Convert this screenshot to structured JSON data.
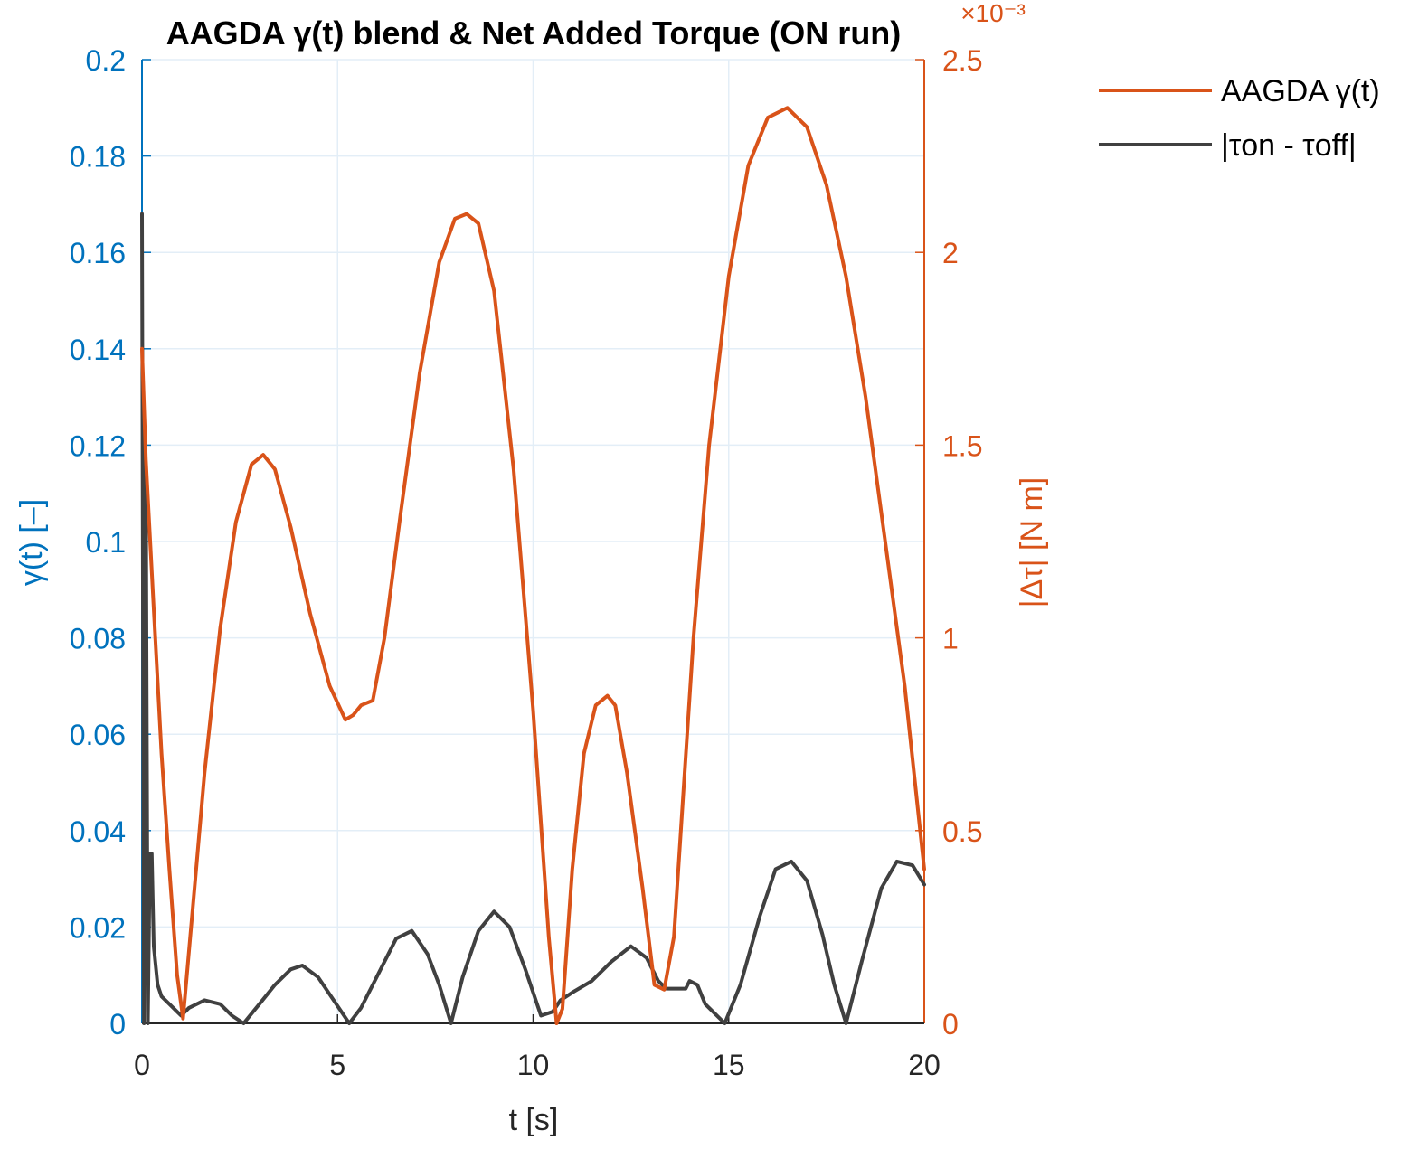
{
  "chart_data": {
    "type": "line",
    "title": "AAGDA γ(t) blend & Net Added Torque (ON run)",
    "xlabel": "t [s]",
    "ylabel_left": "γ(t) [–]",
    "ylabel_right": "|Δτ| [N m]",
    "right_exponent": "×10⁻³",
    "xlim": [
      0,
      20
    ],
    "ylim_left": [
      0,
      0.2
    ],
    "ylim_right": [
      0,
      2.5
    ],
    "xticks": [
      "0",
      "5",
      "10",
      "15",
      "20"
    ],
    "yticks_left": [
      "0",
      "0.02",
      "0.04",
      "0.06",
      "0.08",
      "0.1",
      "0.12",
      "0.14",
      "0.16",
      "0.18",
      "0.2"
    ],
    "yticks_right": [
      "0",
      "0.5",
      "1",
      "1.5",
      "2",
      "2.5"
    ],
    "grid": true,
    "legend_position": "outside-top-right",
    "series": [
      {
        "name": "AAGDA γ(t)",
        "axis": "left",
        "color": "#d95319",
        "x": [
          0.0,
          0.1,
          0.3,
          0.5,
          0.7,
          0.9,
          1.05,
          1.3,
          1.6,
          2.0,
          2.4,
          2.8,
          3.1,
          3.4,
          3.8,
          4.3,
          4.8,
          5.2,
          5.4,
          5.6,
          5.9,
          6.2,
          6.6,
          7.1,
          7.6,
          8.0,
          8.3,
          8.6,
          9.0,
          9.5,
          10.0,
          10.4,
          10.6,
          10.75,
          11.0,
          11.3,
          11.6,
          11.9,
          12.1,
          12.4,
          12.8,
          13.1,
          13.35,
          13.6,
          13.8,
          14.1,
          14.5,
          15.0,
          15.5,
          16.0,
          16.5,
          17.0,
          17.5,
          18.0,
          18.5,
          19.0,
          19.5,
          20.0
        ],
        "y": [
          0.14,
          0.117,
          0.086,
          0.056,
          0.032,
          0.01,
          0.001,
          0.024,
          0.052,
          0.082,
          0.104,
          0.116,
          0.118,
          0.115,
          0.103,
          0.085,
          0.07,
          0.063,
          0.064,
          0.066,
          0.067,
          0.08,
          0.105,
          0.135,
          0.158,
          0.167,
          0.168,
          0.166,
          0.152,
          0.115,
          0.065,
          0.018,
          0.0,
          0.003,
          0.032,
          0.056,
          0.066,
          0.068,
          0.066,
          0.052,
          0.028,
          0.008,
          0.007,
          0.018,
          0.043,
          0.08,
          0.12,
          0.155,
          0.178,
          0.188,
          0.19,
          0.186,
          0.174,
          0.155,
          0.13,
          0.1,
          0.07,
          0.032
        ]
      },
      {
        "name": "|τon - τoff|",
        "axis": "right",
        "color": "#404040",
        "x": [
          0.0,
          0.05,
          0.1,
          0.15,
          0.2,
          0.25,
          0.3,
          0.4,
          0.5,
          0.7,
          0.9,
          1.0,
          1.2,
          1.6,
          2.0,
          2.3,
          2.6,
          3.0,
          3.4,
          3.8,
          4.1,
          4.5,
          4.9,
          5.3,
          5.6,
          6.0,
          6.5,
          6.9,
          7.3,
          7.6,
          7.9,
          8.2,
          8.6,
          9.0,
          9.4,
          9.8,
          10.2,
          10.5,
          10.7,
          11.0,
          11.5,
          12.0,
          12.5,
          12.9,
          13.2,
          13.4,
          13.6,
          13.9,
          14.0,
          14.2,
          14.4,
          14.6,
          14.9,
          15.3,
          15.8,
          16.2,
          16.6,
          17.0,
          17.4,
          17.7,
          18.0,
          18.4,
          18.9,
          19.3,
          19.7,
          20.0
        ],
        "y": [
          2.1,
          0.0,
          1.45,
          0.0,
          0.44,
          0.44,
          0.2,
          0.1,
          0.07,
          0.05,
          0.03,
          0.02,
          0.04,
          0.06,
          0.05,
          0.02,
          0.0,
          0.05,
          0.1,
          0.14,
          0.15,
          0.12,
          0.06,
          0.0,
          0.04,
          0.12,
          0.22,
          0.24,
          0.18,
          0.1,
          0.0,
          0.12,
          0.24,
          0.29,
          0.25,
          0.14,
          0.02,
          0.03,
          0.06,
          0.08,
          0.11,
          0.16,
          0.2,
          0.17,
          0.11,
          0.09,
          0.09,
          0.09,
          0.11,
          0.1,
          0.05,
          0.03,
          0.0,
          0.1,
          0.28,
          0.4,
          0.42,
          0.37,
          0.23,
          0.1,
          0.0,
          0.16,
          0.35,
          0.42,
          0.41,
          0.36
        ]
      }
    ]
  }
}
